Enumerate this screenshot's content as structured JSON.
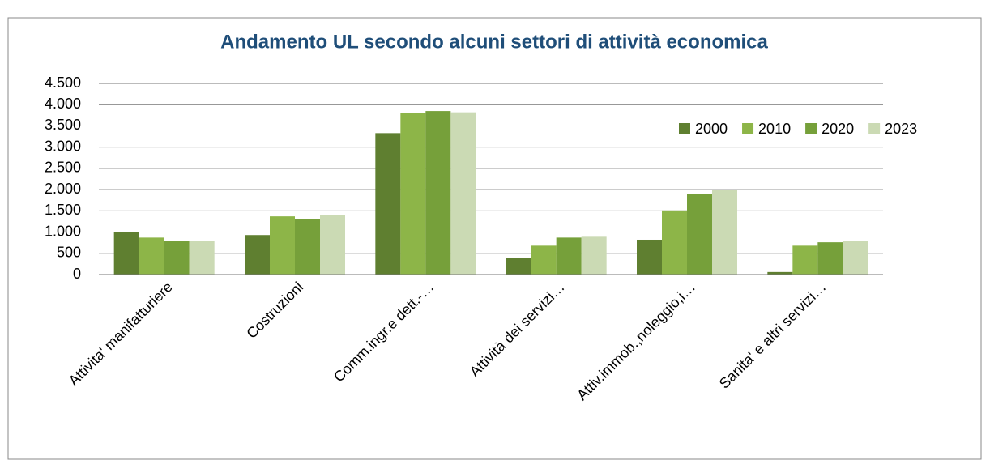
{
  "chart_data": {
    "type": "bar",
    "title": "Andamento UL secondo alcuni settori di attività economica",
    "categories": [
      "Attivita' manifatturiere",
      "Costruzioni",
      "Comm.ingr.e dett.-…",
      "Attività dei servizi…",
      "Attiv.immob.,noleggio,i…",
      "Sanita' e altri servizi…"
    ],
    "series": [
      {
        "name": "2000",
        "color": "#5f7f30",
        "values": [
          1000,
          930,
          3330,
          400,
          820,
          60
        ]
      },
      {
        "name": "2010",
        "color": "#8db548",
        "values": [
          870,
          1370,
          3800,
          680,
          1510,
          680
        ]
      },
      {
        "name": "2020",
        "color": "#76a03a",
        "values": [
          800,
          1300,
          3850,
          870,
          1890,
          760
        ]
      },
      {
        "name": "2023",
        "color": "#cbdab4",
        "values": [
          800,
          1400,
          3820,
          890,
          2000,
          800
        ]
      }
    ],
    "ylim": [
      0,
      4500
    ],
    "yticks": [
      0,
      500,
      {
        "value": 1000,
        "label": "1.000"
      },
      {
        "value": 1500,
        "label": "1.500"
      },
      {
        "value": 2000,
        "label": "2.000"
      },
      {
        "value": 2500,
        "label": "2.500"
      },
      {
        "value": 3000,
        "label": "3.000"
      },
      {
        "value": 3500,
        "label": "3.500"
      },
      {
        "value": 4000,
        "label": "4.000"
      },
      {
        "value": 4500,
        "label": "4.500"
      }
    ],
    "grid": true,
    "legend": "top-right"
  }
}
